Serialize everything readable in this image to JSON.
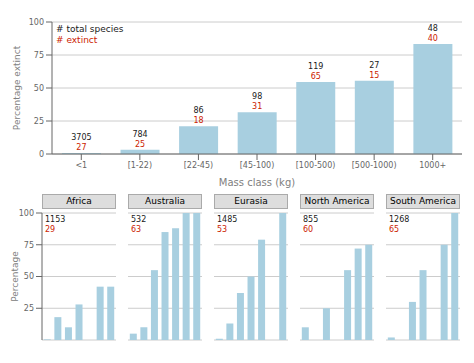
{
  "chart_data": [
    {
      "type": "bar",
      "categories": [
        "<1",
        "[1-22)",
        "[22-45)",
        "[45-100)",
        "[100-500)",
        "[500-1000)",
        "1000+"
      ],
      "values": [
        0.73,
        3.19,
        20.93,
        31.63,
        54.62,
        55.56,
        83.33
      ],
      "annotations": [
        {
          "text": "# total species",
          "color": "#1a1a1a",
          "values": [
            3705,
            784,
            86,
            98,
            119,
            27,
            48
          ]
        },
        {
          "text": "# extinct",
          "color": "#cc2200",
          "values": [
            27,
            25,
            18,
            31,
            65,
            15,
            40
          ]
        }
      ],
      "xlabel": "Mass class (kg)",
      "ylabel": "Percentage extinct",
      "ylim": [
        0,
        100
      ],
      "yticks": [
        0,
        25,
        50,
        75,
        100
      ],
      "grid": true,
      "color": "#a8cfe0"
    },
    {
      "type": "bar",
      "title": "Africa",
      "categories": [
        null,
        null,
        null,
        null,
        null,
        null,
        null
      ],
      "values": [
        0.5,
        18,
        10,
        28,
        0,
        42,
        42
      ],
      "annotations": [
        {
          "value": 1153,
          "color": "#1a1a1a"
        },
        {
          "value": 29,
          "color": "#cc2200"
        }
      ],
      "ylabel": "Percentage",
      "ylim": [
        0,
        100
      ],
      "yticks": [
        0,
        25,
        50,
        75,
        100
      ],
      "grid": true,
      "tick_labels": "y",
      "color": "#a8cfe0"
    },
    {
      "type": "bar",
      "title": "Australia",
      "categories": [
        null,
        null,
        null,
        null,
        null,
        null,
        null
      ],
      "values": [
        5,
        10,
        55,
        85,
        88,
        100,
        100
      ],
      "annotations": [
        {
          "value": 532,
          "color": "#1a1a1a"
        },
        {
          "value": 63,
          "color": "#cc2200"
        }
      ],
      "ylim": [
        0,
        100
      ],
      "yticks": [
        0,
        25,
        50,
        75,
        100
      ],
      "grid": true,
      "tick_labels": false,
      "color": "#a8cfe0"
    },
    {
      "type": "bar",
      "title": "Eurasia",
      "categories": [
        null,
        null,
        null,
        null,
        null,
        null,
        null
      ],
      "values": [
        1,
        13,
        37,
        50,
        79,
        0,
        100
      ],
      "annotations": [
        {
          "value": 1485,
          "color": "#1a1a1a"
        },
        {
          "value": 53,
          "color": "#cc2200"
        }
      ],
      "ylim": [
        0,
        100
      ],
      "yticks": [
        0,
        25,
        50,
        75,
        100
      ],
      "grid": true,
      "tick_labels": false,
      "color": "#a8cfe0"
    },
    {
      "type": "bar",
      "title": "North America",
      "categories": [
        null,
        null,
        null,
        null,
        null,
        null,
        null
      ],
      "values": [
        10,
        0,
        25,
        0,
        55,
        72,
        75
      ],
      "annotations": [
        {
          "value": 855,
          "color": "#1a1a1a"
        },
        {
          "value": 60,
          "color": "#cc2200"
        }
      ],
      "ylim": [
        0,
        100
      ],
      "yticks": [
        0,
        25,
        50,
        75,
        100
      ],
      "grid": true,
      "tick_labels": false,
      "color": "#a8cfe0"
    },
    {
      "type": "bar",
      "title": "South America",
      "categories": [
        null,
        null,
        null,
        null,
        null,
        null,
        null
      ],
      "values": [
        2,
        0,
        30,
        55,
        0,
        75,
        100
      ],
      "annotations": [
        {
          "value": 1268,
          "color": "#1a1a1a"
        },
        {
          "value": 65,
          "color": "#cc2200"
        }
      ],
      "ylim": [
        0,
        100
      ],
      "yticks": [
        0,
        25,
        50,
        75,
        100
      ],
      "grid": true,
      "tick_labels": false,
      "color": "#a8cfe0"
    }
  ]
}
